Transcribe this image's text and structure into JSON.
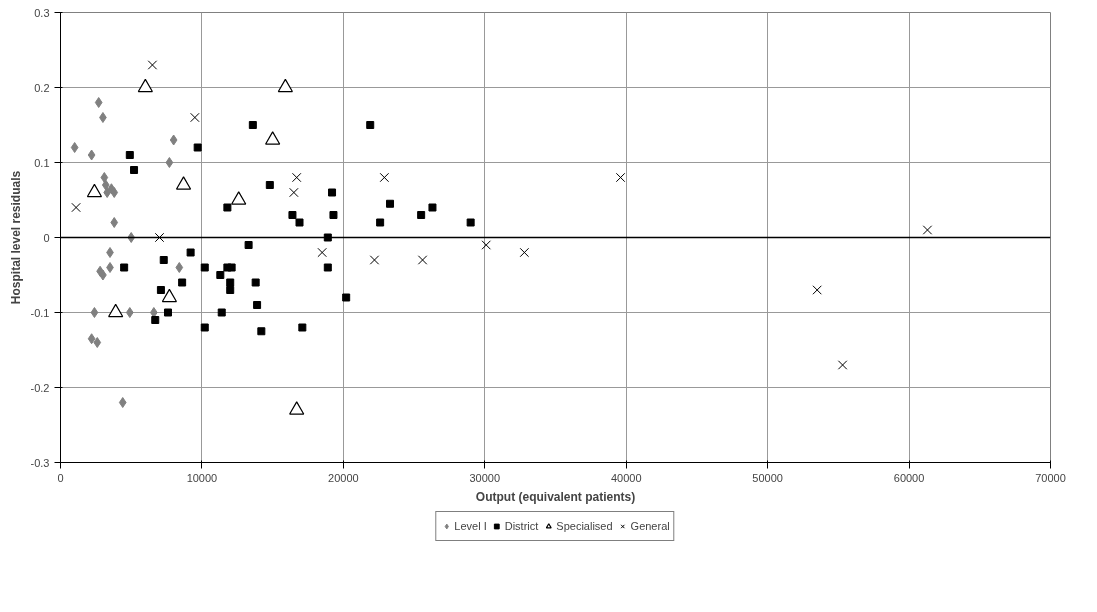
{
  "chart_data": {
    "type": "scatter",
    "xlabel": "Output (equivalent patients)",
    "ylabel": "Hospital level residuals",
    "xlim": [
      0,
      70000
    ],
    "xticks": [
      0,
      10000,
      20000,
      30000,
      40000,
      50000,
      60000,
      70000
    ],
    "ylim": [
      -0.3,
      0.3
    ],
    "yticks": [
      -0.3,
      -0.2,
      -0.1,
      0,
      0.1,
      0.2,
      0.3
    ],
    "grid": true,
    "legend": "bottom",
    "ref_lines": [
      {
        "axis": "y",
        "value": 0,
        "color": "#000000"
      }
    ],
    "series": [
      {
        "name": "Level I",
        "color": "#808080",
        "marker": "diamond",
        "x": [
          1000,
          2200,
          2700,
          3000,
          3100,
          3200,
          3300,
          3600,
          3800,
          3800,
          5000,
          3500,
          3500,
          2800,
          3000,
          2400,
          4900,
          6600,
          2200,
          2600,
          4400,
          7700,
          8000,
          8400
        ],
        "values": [
          0.12,
          0.11,
          0.18,
          0.16,
          0.08,
          0.07,
          0.06,
          0.065,
          0.06,
          0.02,
          0.0,
          -0.02,
          -0.04,
          -0.045,
          -0.05,
          -0.1,
          -0.1,
          -0.1,
          -0.135,
          -0.14,
          -0.22,
          0.1,
          0.13,
          -0.04
        ]
      },
      {
        "name": "District",
        "color": "#000000",
        "marker": "square",
        "x": [
          4900,
          5200,
          9700,
          13600,
          21900,
          14800,
          11800,
          19200,
          23300,
          16400,
          16900,
          19300,
          22600,
          25500,
          26300,
          29000,
          18900,
          13300,
          9200,
          7300,
          4500,
          10200,
          11800,
          12100,
          11300,
          8600,
          12000,
          12000,
          13800,
          18900,
          20200,
          7100,
          6700,
          7600,
          11400,
          10200,
          13900,
          14200,
          17100
        ],
        "values": [
          0.11,
          0.09,
          0.12,
          0.15,
          0.15,
          0.07,
          0.04,
          0.06,
          0.045,
          0.03,
          0.02,
          0.03,
          0.02,
          0.03,
          0.04,
          0.02,
          0.0,
          -0.01,
          -0.02,
          -0.03,
          -0.04,
          -0.04,
          -0.04,
          -0.04,
          -0.05,
          -0.06,
          -0.06,
          -0.07,
          -0.06,
          -0.04,
          -0.08,
          -0.07,
          -0.11,
          -0.1,
          -0.1,
          -0.12,
          -0.09,
          -0.125,
          -0.12
        ]
      },
      {
        "name": "Specialised",
        "color": "#000000",
        "marker": "triangle",
        "x": [
          6000,
          15900,
          15000,
          8700,
          2400,
          12600,
          7700,
          3900,
          16700
        ],
        "values": [
          0.2,
          0.2,
          0.13,
          0.07,
          0.06,
          0.05,
          -0.08,
          -0.1,
          -0.23
        ]
      },
      {
        "name": "General",
        "color": "#000000",
        "marker": "cross",
        "x": [
          6500,
          9500,
          16700,
          22900,
          39600,
          16500,
          1100,
          7000,
          18500,
          22200,
          25600,
          30100,
          32800,
          53500,
          55300,
          61300
        ],
        "values": [
          0.23,
          0.16,
          0.08,
          0.08,
          0.08,
          0.06,
          0.04,
          0.0,
          -0.02,
          -0.03,
          -0.03,
          -0.01,
          -0.02,
          -0.07,
          -0.17,
          0.01
        ]
      }
    ]
  }
}
